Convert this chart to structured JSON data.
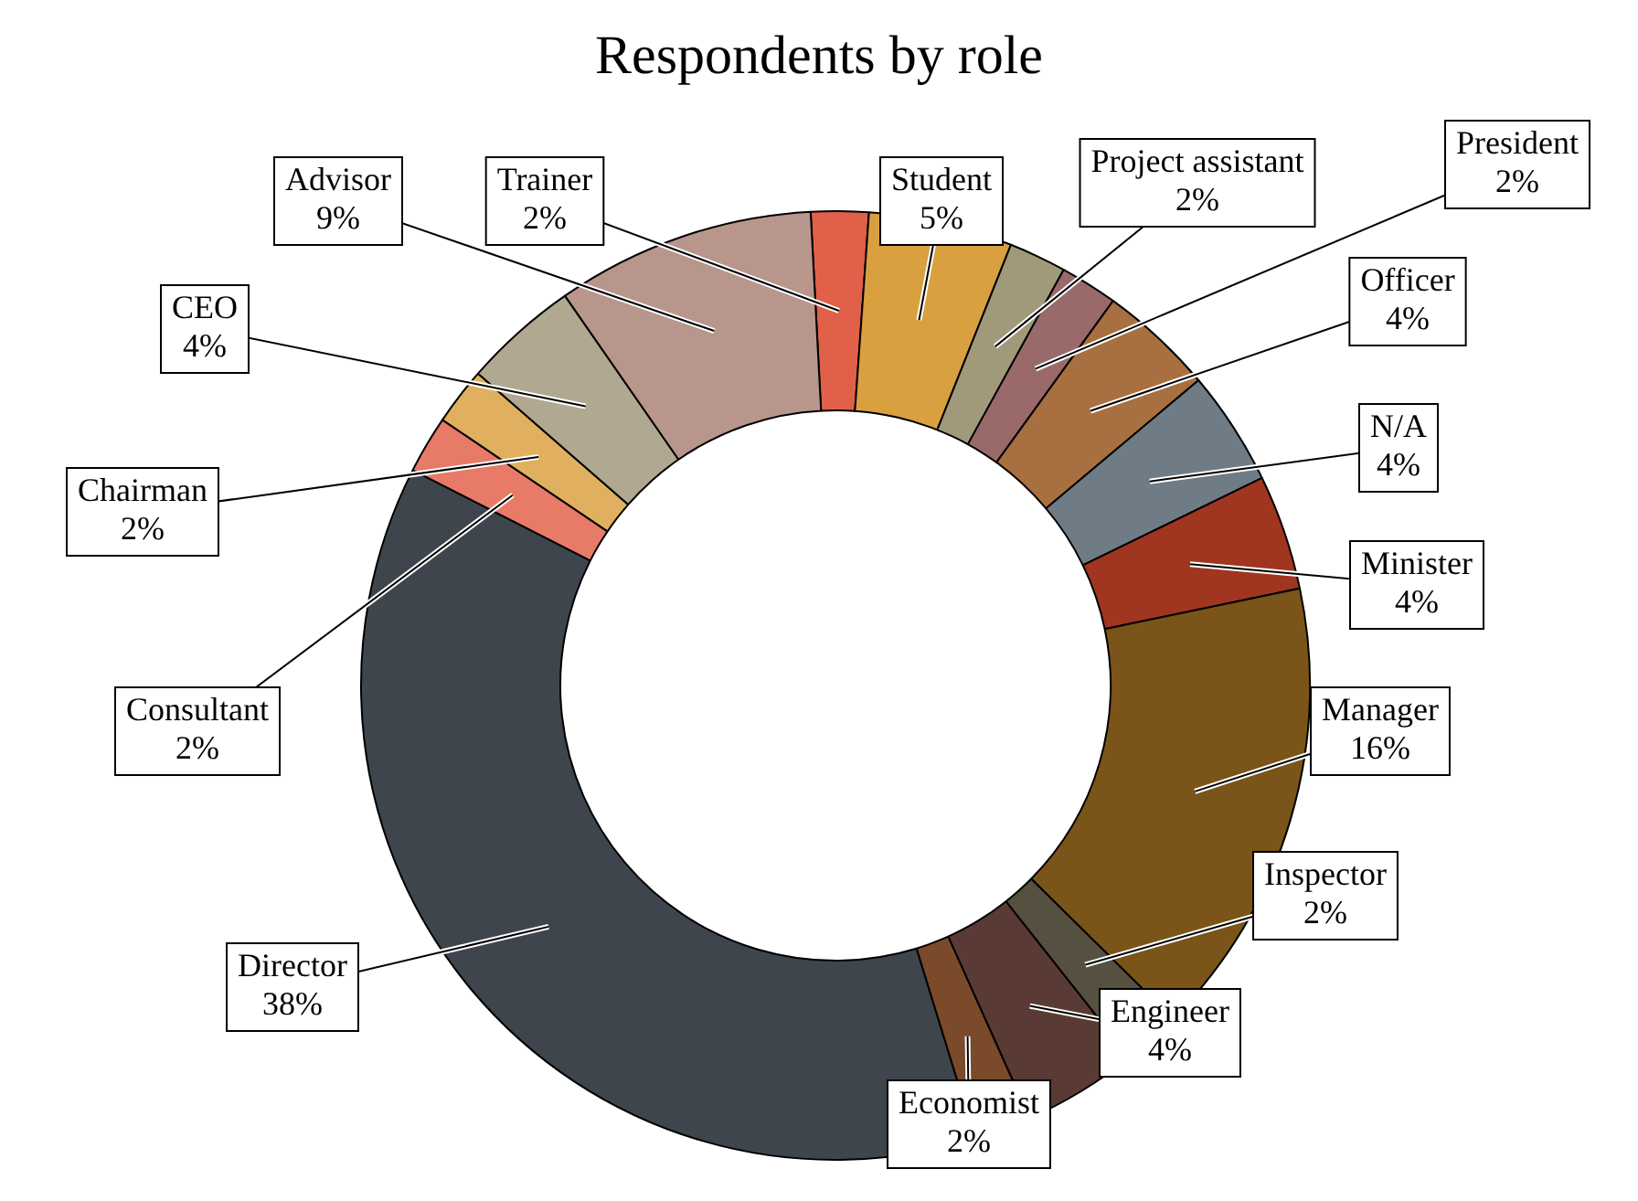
{
  "chart_data": {
    "type": "donut",
    "title": "Respondents by role",
    "categories": [
      "Trainer",
      "Student",
      "Project assistant",
      "President",
      "Officer",
      "N/A",
      "Minister",
      "Manager",
      "Inspector",
      "Engineer",
      "Economist",
      "Director",
      "Consultant",
      "Chairman",
      "CEO",
      "Advisor"
    ],
    "values": [
      2,
      5,
      2,
      2,
      4,
      4,
      4,
      16,
      2,
      4,
      2,
      38,
      2,
      2,
      4,
      9
    ],
    "colors": [
      "#e0604a",
      "#d9a040",
      "#a09a7a",
      "#9a6a6a",
      "#a87040",
      "#6f7c86",
      "#a03520",
      "#7a5418",
      "#555040",
      "#5a3a34",
      "#7a4a2a",
      "#3f454d",
      "#e87a68",
      "#e0b060",
      "#b0a890",
      "#b8968c"
    ],
    "value_labels": [
      "2%",
      "5%",
      "2%",
      "2%",
      "4%",
      "4%",
      "4%",
      "16%",
      "2%",
      "4%",
      "2%",
      "38%",
      "2%",
      "2%",
      "4%",
      "9%"
    ],
    "legend": false
  }
}
